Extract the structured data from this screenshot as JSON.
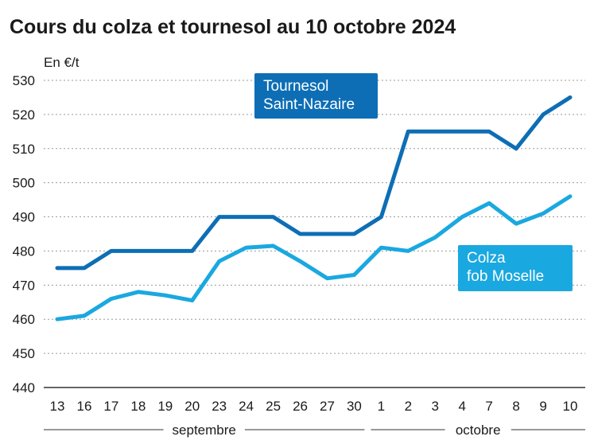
{
  "chart_data": {
    "type": "line",
    "title": "Cours du colza et tournesol au 10 octobre 2024",
    "ylabel": "En €/t",
    "ylim": [
      440,
      530
    ],
    "yticks": [
      440,
      450,
      460,
      470,
      480,
      490,
      500,
      510,
      520,
      530
    ],
    "grid": "horizontal dotted",
    "categories": [
      "13",
      "16",
      "17",
      "18",
      "19",
      "20",
      "23",
      "24",
      "25",
      "26",
      "27",
      "30",
      "1",
      "2",
      "3",
      "4",
      "7",
      "8",
      "9",
      "10"
    ],
    "month_groups": [
      {
        "label": "septembre",
        "from": 0,
        "to": 11
      },
      {
        "label": "octobre",
        "from": 12,
        "to": 19
      }
    ],
    "series": [
      {
        "name_lines": [
          "Tournesol",
          "Saint-Nazaire"
        ],
        "color": "#0d6eb5",
        "values": [
          475,
          475,
          480,
          480,
          480,
          480,
          490,
          490,
          490,
          485,
          485,
          485,
          490,
          515,
          515,
          515,
          515,
          510,
          520,
          525
        ]
      },
      {
        "name_lines": [
          "Colza",
          "fob Moselle"
        ],
        "color": "#1aa8e0",
        "values": [
          460,
          461,
          466,
          468,
          467,
          465.5,
          477,
          481,
          481.5,
          477,
          472,
          473,
          481,
          480,
          484,
          490,
          494,
          488,
          491,
          496
        ]
      }
    ]
  }
}
